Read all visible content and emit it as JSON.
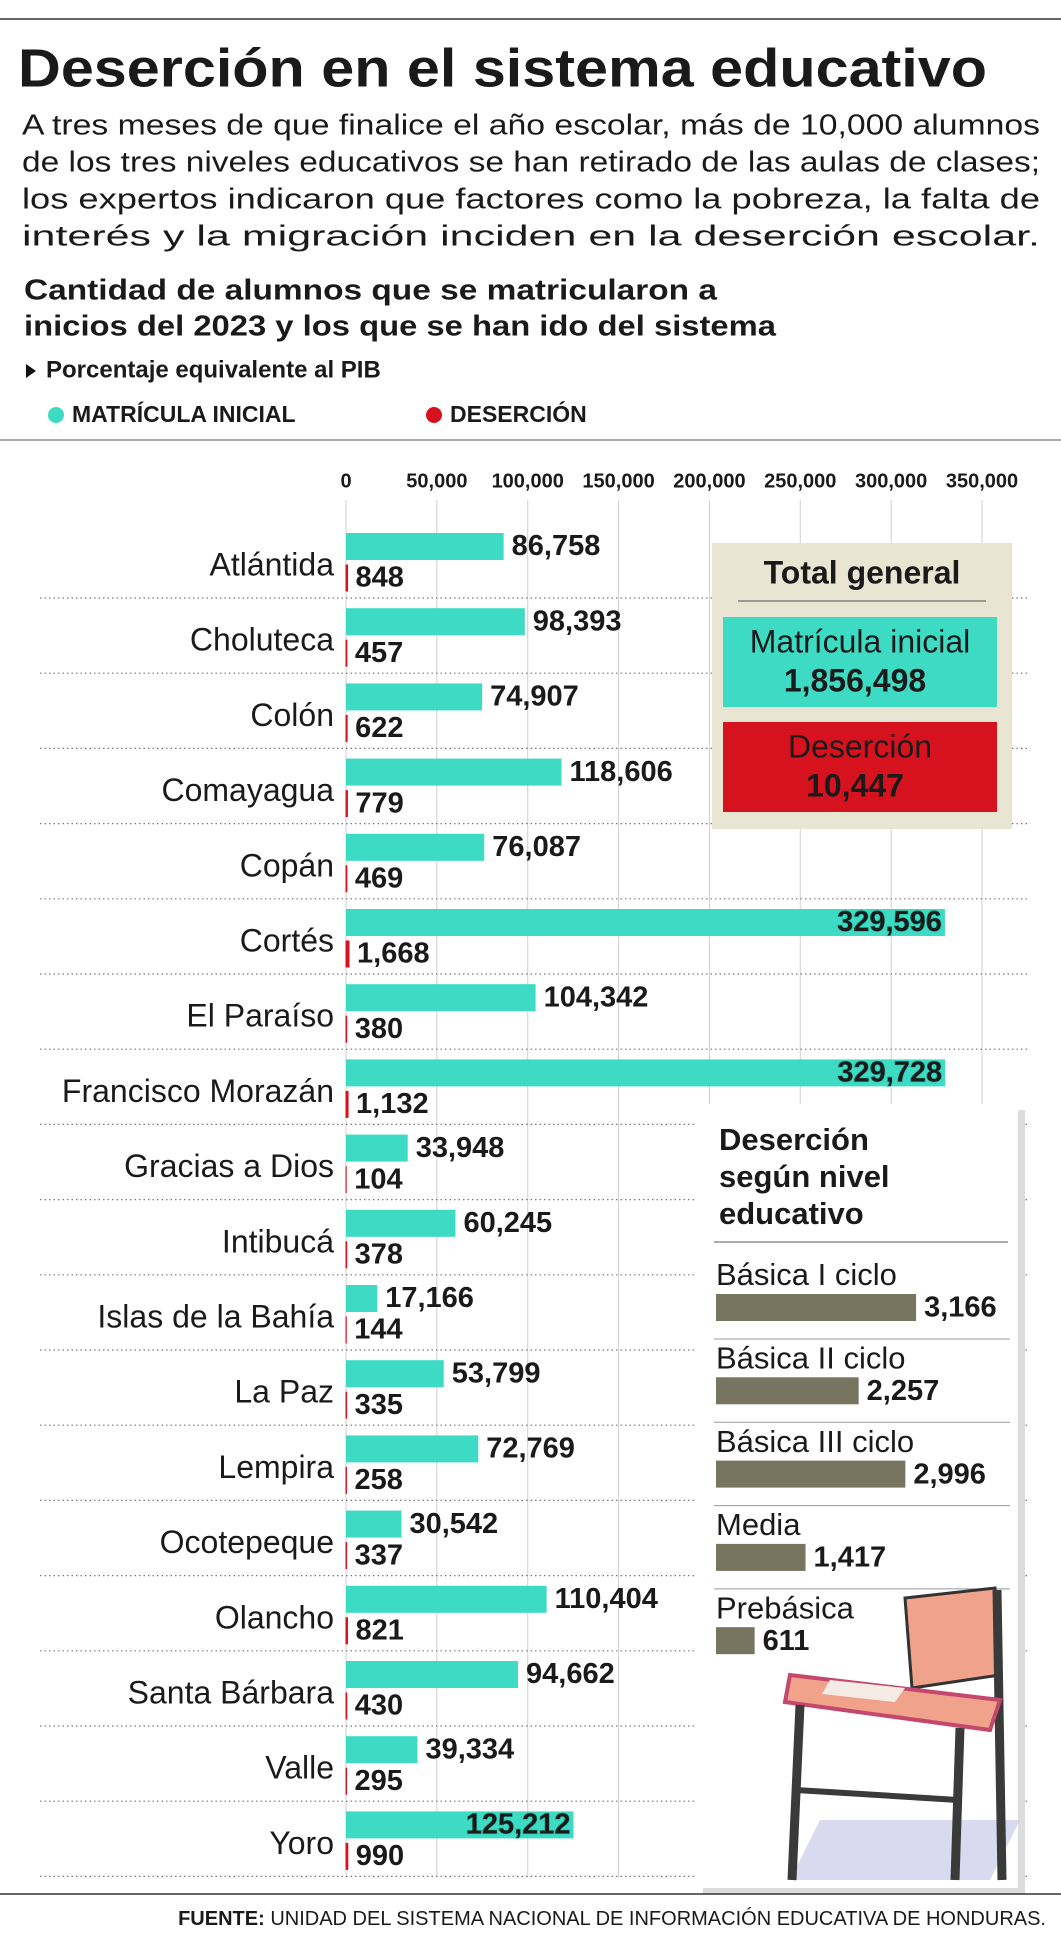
{
  "header": {
    "title": "Deserción en el sistema educativo",
    "intro": [
      "A tres meses de que finalice el año escolar, más de 10,000 alumnos",
      "de los tres niveles educativos se han retirado de las aulas de clases;",
      "los expertos indicaron que factores como la pobreza, la falta de",
      "interés y la migración inciden en la deserción escolar."
    ]
  },
  "chart_data": [
    {
      "type": "bar",
      "orientation": "horizontal",
      "title": [
        "Cantidad de alumnos que se matricularon a",
        "inicios del 2023 y los que se han ido del sistema"
      ],
      "note": "Porcentaje equivalente al PIB",
      "categories": [
        "Atlántida",
        "Choluteca",
        "Colón",
        "Comayagua",
        "Copán",
        "Cortés",
        "El Paraíso",
        "Francisco Morazán",
        "Gracias a Dios",
        "Intibucá",
        "Islas de la Bahía",
        "La Paz",
        "Lempira",
        "Ocotepeque",
        "Olancho",
        "Santa Bárbara",
        "Valle",
        "Yoro"
      ],
      "series": [
        {
          "name": "MATRÍCULA INICIAL",
          "color": "#3ddbc3",
          "values": [
            86758,
            98393,
            74907,
            118606,
            76087,
            329596,
            104342,
            329728,
            33948,
            60245,
            17166,
            53799,
            72769,
            30542,
            110404,
            94662,
            39334,
            125212
          ],
          "value_labels": [
            "86,758",
            "98,393",
            "74,907",
            "118,606",
            "76,087",
            "329,596",
            "104,342",
            "329,728",
            "33,948",
            "60,245",
            "17,166",
            "53,799",
            "72,769",
            "30,542",
            "110,404",
            "94,662",
            "39,334",
            "125,212"
          ]
        },
        {
          "name": "DESERCIÓN",
          "color": "#d7121f",
          "values": [
            848,
            457,
            622,
            779,
            469,
            1668,
            380,
            1132,
            104,
            378,
            144,
            335,
            258,
            337,
            821,
            430,
            295,
            990
          ],
          "value_labels": [
            "848",
            "457",
            "622",
            "779",
            "469",
            "1,668",
            "380",
            "1,132",
            "104",
            "378",
            "144",
            "335",
            "258",
            "337",
            "821",
            "430",
            "295",
            "990"
          ]
        }
      ],
      "xlim": [
        0,
        350000
      ],
      "xticks": [
        0,
        {
          "value": 50000,
          "label": "50,000"
        },
        {
          "value": 100000,
          "label": "100,000"
        },
        {
          "value": 150000,
          "label": "150,000"
        },
        {
          "value": 200000,
          "label": "200,000"
        },
        {
          "value": 250000,
          "label": "250,000"
        },
        {
          "value": 300000,
          "label": "300,000"
        },
        {
          "value": 350000,
          "label": "350,000"
        }
      ],
      "grid": true,
      "legend": "top-left"
    },
    {
      "type": "bar",
      "orientation": "horizontal",
      "title": [
        "Deserción",
        "según nivel",
        "educativo"
      ],
      "categories": [
        "Básica I ciclo",
        "Básica II ciclo",
        "Básica III ciclo",
        "Media",
        "Prebásica"
      ],
      "values": [
        3166,
        2257,
        2996,
        1417,
        611
      ],
      "value_labels": [
        "3,166",
        "2,257",
        "2,996",
        "1,417",
        "611"
      ],
      "color": "#77755f"
    }
  ],
  "totals": {
    "title": "Total general",
    "items": [
      {
        "label": "Matrícula inicial",
        "value": "1,856,498"
      },
      {
        "label": "Deserción",
        "value": "10,447"
      }
    ]
  },
  "source": {
    "label": "FUENTE:",
    "text": "UNIDAD DEL SISTEMA NACIONAL DE INFORMACIÓN EDUCATIVA DE HONDURAS."
  }
}
